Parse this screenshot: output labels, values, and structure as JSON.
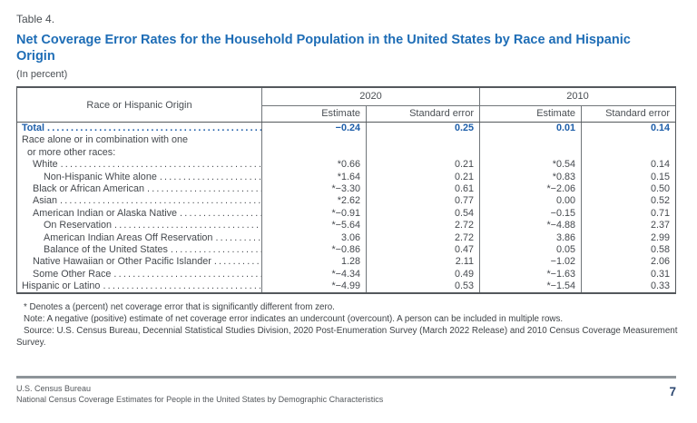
{
  "page": {
    "table_label": "Table 4.",
    "title": "Net Coverage Error Rates for the Household Population in the United States by Race and Hispanic Origin",
    "subtitle": "(In percent)"
  },
  "table": {
    "stub_header": "Race or Hispanic Origin",
    "groups": [
      {
        "year": "2020",
        "columns": [
          "Estimate",
          "Standard error"
        ]
      },
      {
        "year": "2010",
        "columns": [
          "Estimate",
          "Standard error"
        ]
      }
    ],
    "rows": [
      {
        "label": "Total",
        "indent": "0",
        "bold": true,
        "leaders": true,
        "values": [
          "−0.24",
          "0.25",
          "0.01",
          "0.14"
        ]
      },
      {
        "label": "Race alone or in combination with one",
        "indent": "0",
        "bold": false,
        "leaders": false
      },
      {
        "label": "or more other races:",
        "indent": "h",
        "bold": false,
        "leaders": false
      },
      {
        "label": "White",
        "indent": "1",
        "bold": false,
        "leaders": true,
        "values": [
          "*0.66",
          "0.21",
          "*0.54",
          "0.14"
        ]
      },
      {
        "label": "Non-Hispanic White alone",
        "indent": "2",
        "bold": false,
        "leaders": true,
        "values": [
          "*1.64",
          "0.21",
          "*0.83",
          "0.15"
        ]
      },
      {
        "label": "Black or African American",
        "indent": "1",
        "bold": false,
        "leaders": true,
        "values": [
          "*−3.30",
          "0.61",
          "*−2.06",
          "0.50"
        ]
      },
      {
        "label": "Asian",
        "indent": "1",
        "bold": false,
        "leaders": true,
        "values": [
          "*2.62",
          "0.77",
          "0.00",
          "0.52"
        ]
      },
      {
        "label": "American Indian or Alaska Native",
        "indent": "1",
        "bold": false,
        "leaders": true,
        "values": [
          "*−0.91",
          "0.54",
          "−0.15",
          "0.71"
        ]
      },
      {
        "label": "On Reservation",
        "indent": "2",
        "bold": false,
        "leaders": true,
        "values": [
          "*−5.64",
          "2.72",
          "*−4.88",
          "2.37"
        ]
      },
      {
        "label": "American Indian Areas Off Reservation",
        "indent": "2",
        "bold": false,
        "leaders": true,
        "values": [
          "3.06",
          "2.72",
          "3.86",
          "2.99"
        ]
      },
      {
        "label": "Balance of the United States",
        "indent": "2",
        "bold": false,
        "leaders": true,
        "values": [
          "*−0.86",
          "0.47",
          "0.05",
          "0.58"
        ]
      },
      {
        "label": "Native Hawaiian or Other Pacific Islander",
        "indent": "1",
        "bold": false,
        "leaders": true,
        "values": [
          "1.28",
          "2.11",
          "−1.02",
          "2.06"
        ]
      },
      {
        "label": "Some Other Race",
        "indent": "1",
        "bold": false,
        "leaders": true,
        "values": [
          "*−4.34",
          "0.49",
          "*−1.63",
          "0.31"
        ]
      },
      {
        "label": "Hispanic or Latino",
        "indent": "0",
        "bold": false,
        "leaders": true,
        "values": [
          "*−4.99",
          "0.53",
          "*−1.54",
          "0.33"
        ]
      }
    ]
  },
  "footnotes": [
    "* Denotes a (percent) net coverage error that is significantly different from zero.",
    "Note: A negative (positive) estimate of net coverage error indicates an undercount (overcount). A person can be included in multiple rows.",
    "Source: U.S. Census Bureau, Decennial Statistical Studies Division, 2020 Post-Enumeration Survey (March 2022 Release) and 2010 Census Coverage Measurement Survey."
  ],
  "footer": {
    "agency": "U.S. Census Bureau",
    "report": "National Census Coverage Estimates for People in the United States by Demographic Characteristics",
    "page_number": "7"
  },
  "colors": {
    "title_blue": "#1e6db6",
    "total_row_blue": "#1d5ea9",
    "body_text": "#45494e",
    "border_dark": "#54585c"
  }
}
